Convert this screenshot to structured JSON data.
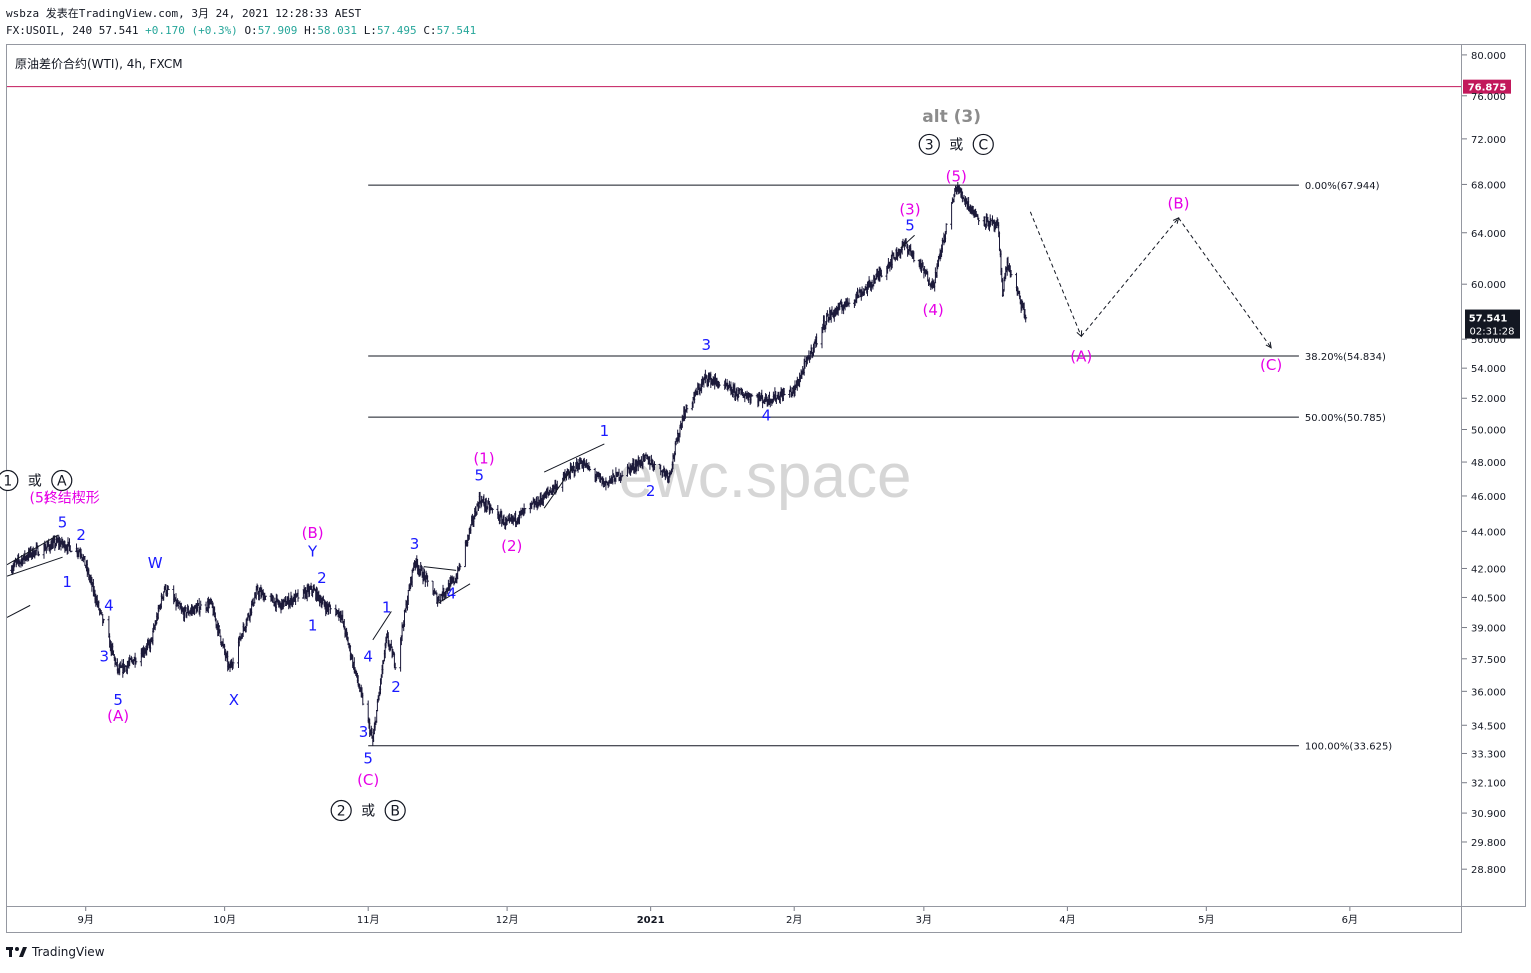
{
  "header": {
    "line1": "wsbza 发表在TradingView.com, 3月 24, 2021 12:28:33 AEST",
    "symbol": "FX:USOIL, 240",
    "last": "57.541",
    "change": "+0.170 (+0.3%)",
    "o_label": "O:",
    "o": "57.909",
    "h_label": "H:",
    "h": "58.031",
    "l_label": "L:",
    "l": "57.495",
    "c_label": "C:",
    "c": "57.541"
  },
  "legend": "原油差价合约(WTI), 4h, FXCM",
  "watermark": "ewc.space",
  "footer": {
    "brand": "TradingView"
  },
  "colors": {
    "candle": "#1c1a3a",
    "blue": "#1a1aff",
    "magenta": "#e600e6",
    "alert": "#c2185b",
    "gray": "#8c8c8c"
  },
  "chart_data": {
    "type": "candlestick",
    "symbol": "FX:USOIL",
    "interval": "4h",
    "ylim": [
      27.5,
      81
    ],
    "y_scale": "log",
    "x_range": [
      "2020-08-15",
      "2021-06-25"
    ],
    "x_ticks": [
      {
        "date": "2020-09-01",
        "label": "9月"
      },
      {
        "date": "2020-10-01",
        "label": "10月"
      },
      {
        "date": "2020-11-01",
        "label": "11月"
      },
      {
        "date": "2020-12-01",
        "label": "12月"
      },
      {
        "date": "2021-01-01",
        "label": "2021"
      },
      {
        "date": "2021-02-01",
        "label": "2月"
      },
      {
        "date": "2021-03-01",
        "label": "3月"
      },
      {
        "date": "2021-04-01",
        "label": "4月"
      },
      {
        "date": "2021-05-01",
        "label": "5月"
      },
      {
        "date": "2021-06-01",
        "label": "6月"
      }
    ],
    "y_ticks": [
      "80.000",
      "76.000",
      "72.000",
      "68.000",
      "64.000",
      "60.000",
      "56.000",
      "54.000",
      "52.000",
      "50.000",
      "48.000",
      "46.000",
      "44.000",
      "42.000",
      "40.500",
      "39.000",
      "37.500",
      "36.000",
      "34.500",
      "33.300",
      "32.100",
      "30.900",
      "29.800",
      "28.800"
    ],
    "price_path": [
      {
        "date": "2020-08-15",
        "price": 41.9
      },
      {
        "date": "2020-08-20",
        "price": 42.8
      },
      {
        "date": "2020-08-26",
        "price": 43.4
      },
      {
        "date": "2020-08-31",
        "price": 42.9
      },
      {
        "date": "2020-09-04",
        "price": 39.8
      },
      {
        "date": "2020-09-08",
        "price": 36.9
      },
      {
        "date": "2020-09-10",
        "price": 37.2
      },
      {
        "date": "2020-09-15",
        "price": 38.2
      },
      {
        "date": "2020-09-18",
        "price": 41.0
      },
      {
        "date": "2020-09-22",
        "price": 39.7
      },
      {
        "date": "2020-09-28",
        "price": 40.2
      },
      {
        "date": "2020-10-02",
        "price": 37.0
      },
      {
        "date": "2020-10-08",
        "price": 40.8
      },
      {
        "date": "2020-10-13",
        "price": 40.1
      },
      {
        "date": "2020-10-20",
        "price": 40.9
      },
      {
        "date": "2020-10-23",
        "price": 40.0
      },
      {
        "date": "2020-10-26",
        "price": 39.7
      },
      {
        "date": "2020-10-30",
        "price": 36.2
      },
      {
        "date": "2020-11-02",
        "price": 33.8
      },
      {
        "date": "2020-11-05",
        "price": 38.5
      },
      {
        "date": "2020-11-07",
        "price": 37.2
      },
      {
        "date": "2020-11-11",
        "price": 42.4
      },
      {
        "date": "2020-11-16",
        "price": 40.4
      },
      {
        "date": "2020-11-20",
        "price": 41.5
      },
      {
        "date": "2020-11-25",
        "price": 45.8
      },
      {
        "date": "2020-12-01",
        "price": 44.4
      },
      {
        "date": "2020-12-08",
        "price": 45.7
      },
      {
        "date": "2020-12-17",
        "price": 48.0
      },
      {
        "date": "2020-12-22",
        "price": 46.7
      },
      {
        "date": "2020-12-31",
        "price": 48.2
      },
      {
        "date": "2021-01-05",
        "price": 47.2
      },
      {
        "date": "2021-01-08",
        "price": 50.9
      },
      {
        "date": "2021-01-13",
        "price": 53.4
      },
      {
        "date": "2021-01-19",
        "price": 52.4
      },
      {
        "date": "2021-01-26",
        "price": 51.9
      },
      {
        "date": "2021-02-01",
        "price": 52.5
      },
      {
        "date": "2021-02-08",
        "price": 57.5
      },
      {
        "date": "2021-02-17",
        "price": 59.8
      },
      {
        "date": "2021-02-25",
        "price": 63.1
      },
      {
        "date": "2021-03-03",
        "price": 59.9
      },
      {
        "date": "2021-03-08",
        "price": 67.8
      },
      {
        "date": "2021-03-12",
        "price": 65.5
      },
      {
        "date": "2021-03-17",
        "price": 64.4
      },
      {
        "date": "2021-03-18",
        "price": 59.5
      },
      {
        "date": "2021-03-19",
        "price": 61.6
      },
      {
        "date": "2021-03-23",
        "price": 57.5
      }
    ],
    "fib_levels": [
      {
        "label": "0.00%(67.944)",
        "price": 67.944
      },
      {
        "label": "38.20%(54.834)",
        "price": 54.834
      },
      {
        "label": "50.00%(50.785)",
        "price": 50.785
      },
      {
        "label": "100.00%(33.625)",
        "price": 33.625
      }
    ],
    "alert_line": {
      "label": "76.875",
      "price": 76.875
    },
    "last_price": {
      "label": "57.541",
      "countdown": "02:31:28",
      "price": 57.541
    },
    "projection": [
      {
        "date": "2021-03-24",
        "price": 65.7
      },
      {
        "date": "2021-04-04",
        "price": 56.2
      },
      {
        "date": "2021-04-25",
        "price": 65.2
      },
      {
        "date": "2021-05-15",
        "price": 55.4
      }
    ],
    "wave_labels": [
      {
        "text": "5",
        "date": "2020-08-27",
        "price": 44.5,
        "color": "blue"
      },
      {
        "text": "2",
        "date": "2020-08-31",
        "price": 43.8,
        "color": "blue"
      },
      {
        "text": "1",
        "date": "2020-08-28",
        "price": 41.3,
        "color": "blue"
      },
      {
        "text": "4",
        "date": "2020-09-06",
        "price": 40.1,
        "color": "blue"
      },
      {
        "text": "3",
        "date": "2020-09-05",
        "price": 37.6,
        "color": "blue"
      },
      {
        "text": "5",
        "date": "2020-09-08",
        "price": 35.6,
        "color": "blue"
      },
      {
        "text": "(A)",
        "date": "2020-09-08",
        "price": 34.9,
        "color": "magenta"
      },
      {
        "text": "W",
        "date": "2020-09-16",
        "price": 42.3,
        "color": "blue"
      },
      {
        "text": "X",
        "date": "2020-10-03",
        "price": 35.6,
        "color": "blue"
      },
      {
        "text": "(B)",
        "date": "2020-10-20",
        "price": 43.9,
        "color": "magenta"
      },
      {
        "text": "Y",
        "date": "2020-10-20",
        "price": 42.9,
        "color": "blue"
      },
      {
        "text": "2",
        "date": "2020-10-22",
        "price": 41.5,
        "color": "blue"
      },
      {
        "text": "1",
        "date": "2020-10-20",
        "price": 39.1,
        "color": "blue"
      },
      {
        "text": "4",
        "date": "2020-11-01",
        "price": 37.6,
        "color": "blue"
      },
      {
        "text": "3",
        "date": "2020-10-31",
        "price": 34.2,
        "color": "blue"
      },
      {
        "text": "5",
        "date": "2020-11-01",
        "price": 33.1,
        "color": "blue"
      },
      {
        "text": "(C)",
        "date": "2020-11-01",
        "price": 32.2,
        "color": "magenta"
      },
      {
        "text": "1",
        "date": "2020-11-05",
        "price": 40.0,
        "color": "blue"
      },
      {
        "text": "2",
        "date": "2020-11-07",
        "price": 36.2,
        "color": "blue"
      },
      {
        "text": "3",
        "date": "2020-11-11",
        "price": 43.3,
        "color": "blue"
      },
      {
        "text": "4",
        "date": "2020-11-19",
        "price": 40.7,
        "color": "blue"
      },
      {
        "text": "(1)",
        "date": "2020-11-26",
        "price": 48.2,
        "color": "magenta"
      },
      {
        "text": "5",
        "date": "2020-11-25",
        "price": 47.2,
        "color": "blue"
      },
      {
        "text": "(2)",
        "date": "2020-12-02",
        "price": 43.2,
        "color": "magenta"
      },
      {
        "text": "1",
        "date": "2020-12-22",
        "price": 49.9,
        "color": "blue"
      },
      {
        "text": "2",
        "date": "2021-01-01",
        "price": 46.3,
        "color": "blue"
      },
      {
        "text": "3",
        "date": "2021-01-13",
        "price": 55.6,
        "color": "blue"
      },
      {
        "text": "4",
        "date": "2021-01-26",
        "price": 50.9,
        "color": "blue"
      },
      {
        "text": "(3)",
        "date": "2021-02-26",
        "price": 65.9,
        "color": "magenta"
      },
      {
        "text": "5",
        "date": "2021-02-26",
        "price": 64.6,
        "color": "blue"
      },
      {
        "text": "(4)",
        "date": "2021-03-03",
        "price": 58.1,
        "color": "magenta"
      },
      {
        "text": "(5)",
        "date": "2021-03-08",
        "price": 68.7,
        "color": "magenta"
      },
      {
        "text": "(A)",
        "date": "2021-04-04",
        "price": 54.8,
        "color": "magenta"
      },
      {
        "text": "(B)",
        "date": "2021-04-25",
        "price": 66.4,
        "color": "magenta"
      },
      {
        "text": "(C)",
        "date": "2021-05-15",
        "price": 54.2,
        "color": "magenta"
      }
    ],
    "degree_labels": [
      {
        "parts": [
          "1",
          "或",
          "A"
        ],
        "date": "2020-08-21",
        "price": 46.9
      },
      {
        "parts": [
          "2",
          "或",
          "B"
        ],
        "date": "2020-11-01",
        "price": 31.0
      },
      {
        "parts": [
          "3",
          "或",
          "C"
        ],
        "date": "2021-03-08",
        "price": 71.5
      }
    ],
    "annotations": [
      {
        "text": "(5)",
        "color": "magenta",
        "date": "2020-08-22",
        "price": 45.9
      },
      {
        "text": "终结楔形",
        "color": "magenta",
        "date": "2020-08-29",
        "price": 45.9
      },
      {
        "text": "alt (3)",
        "color": "gray",
        "date": "2021-03-07",
        "price": 74.0
      }
    ]
  }
}
